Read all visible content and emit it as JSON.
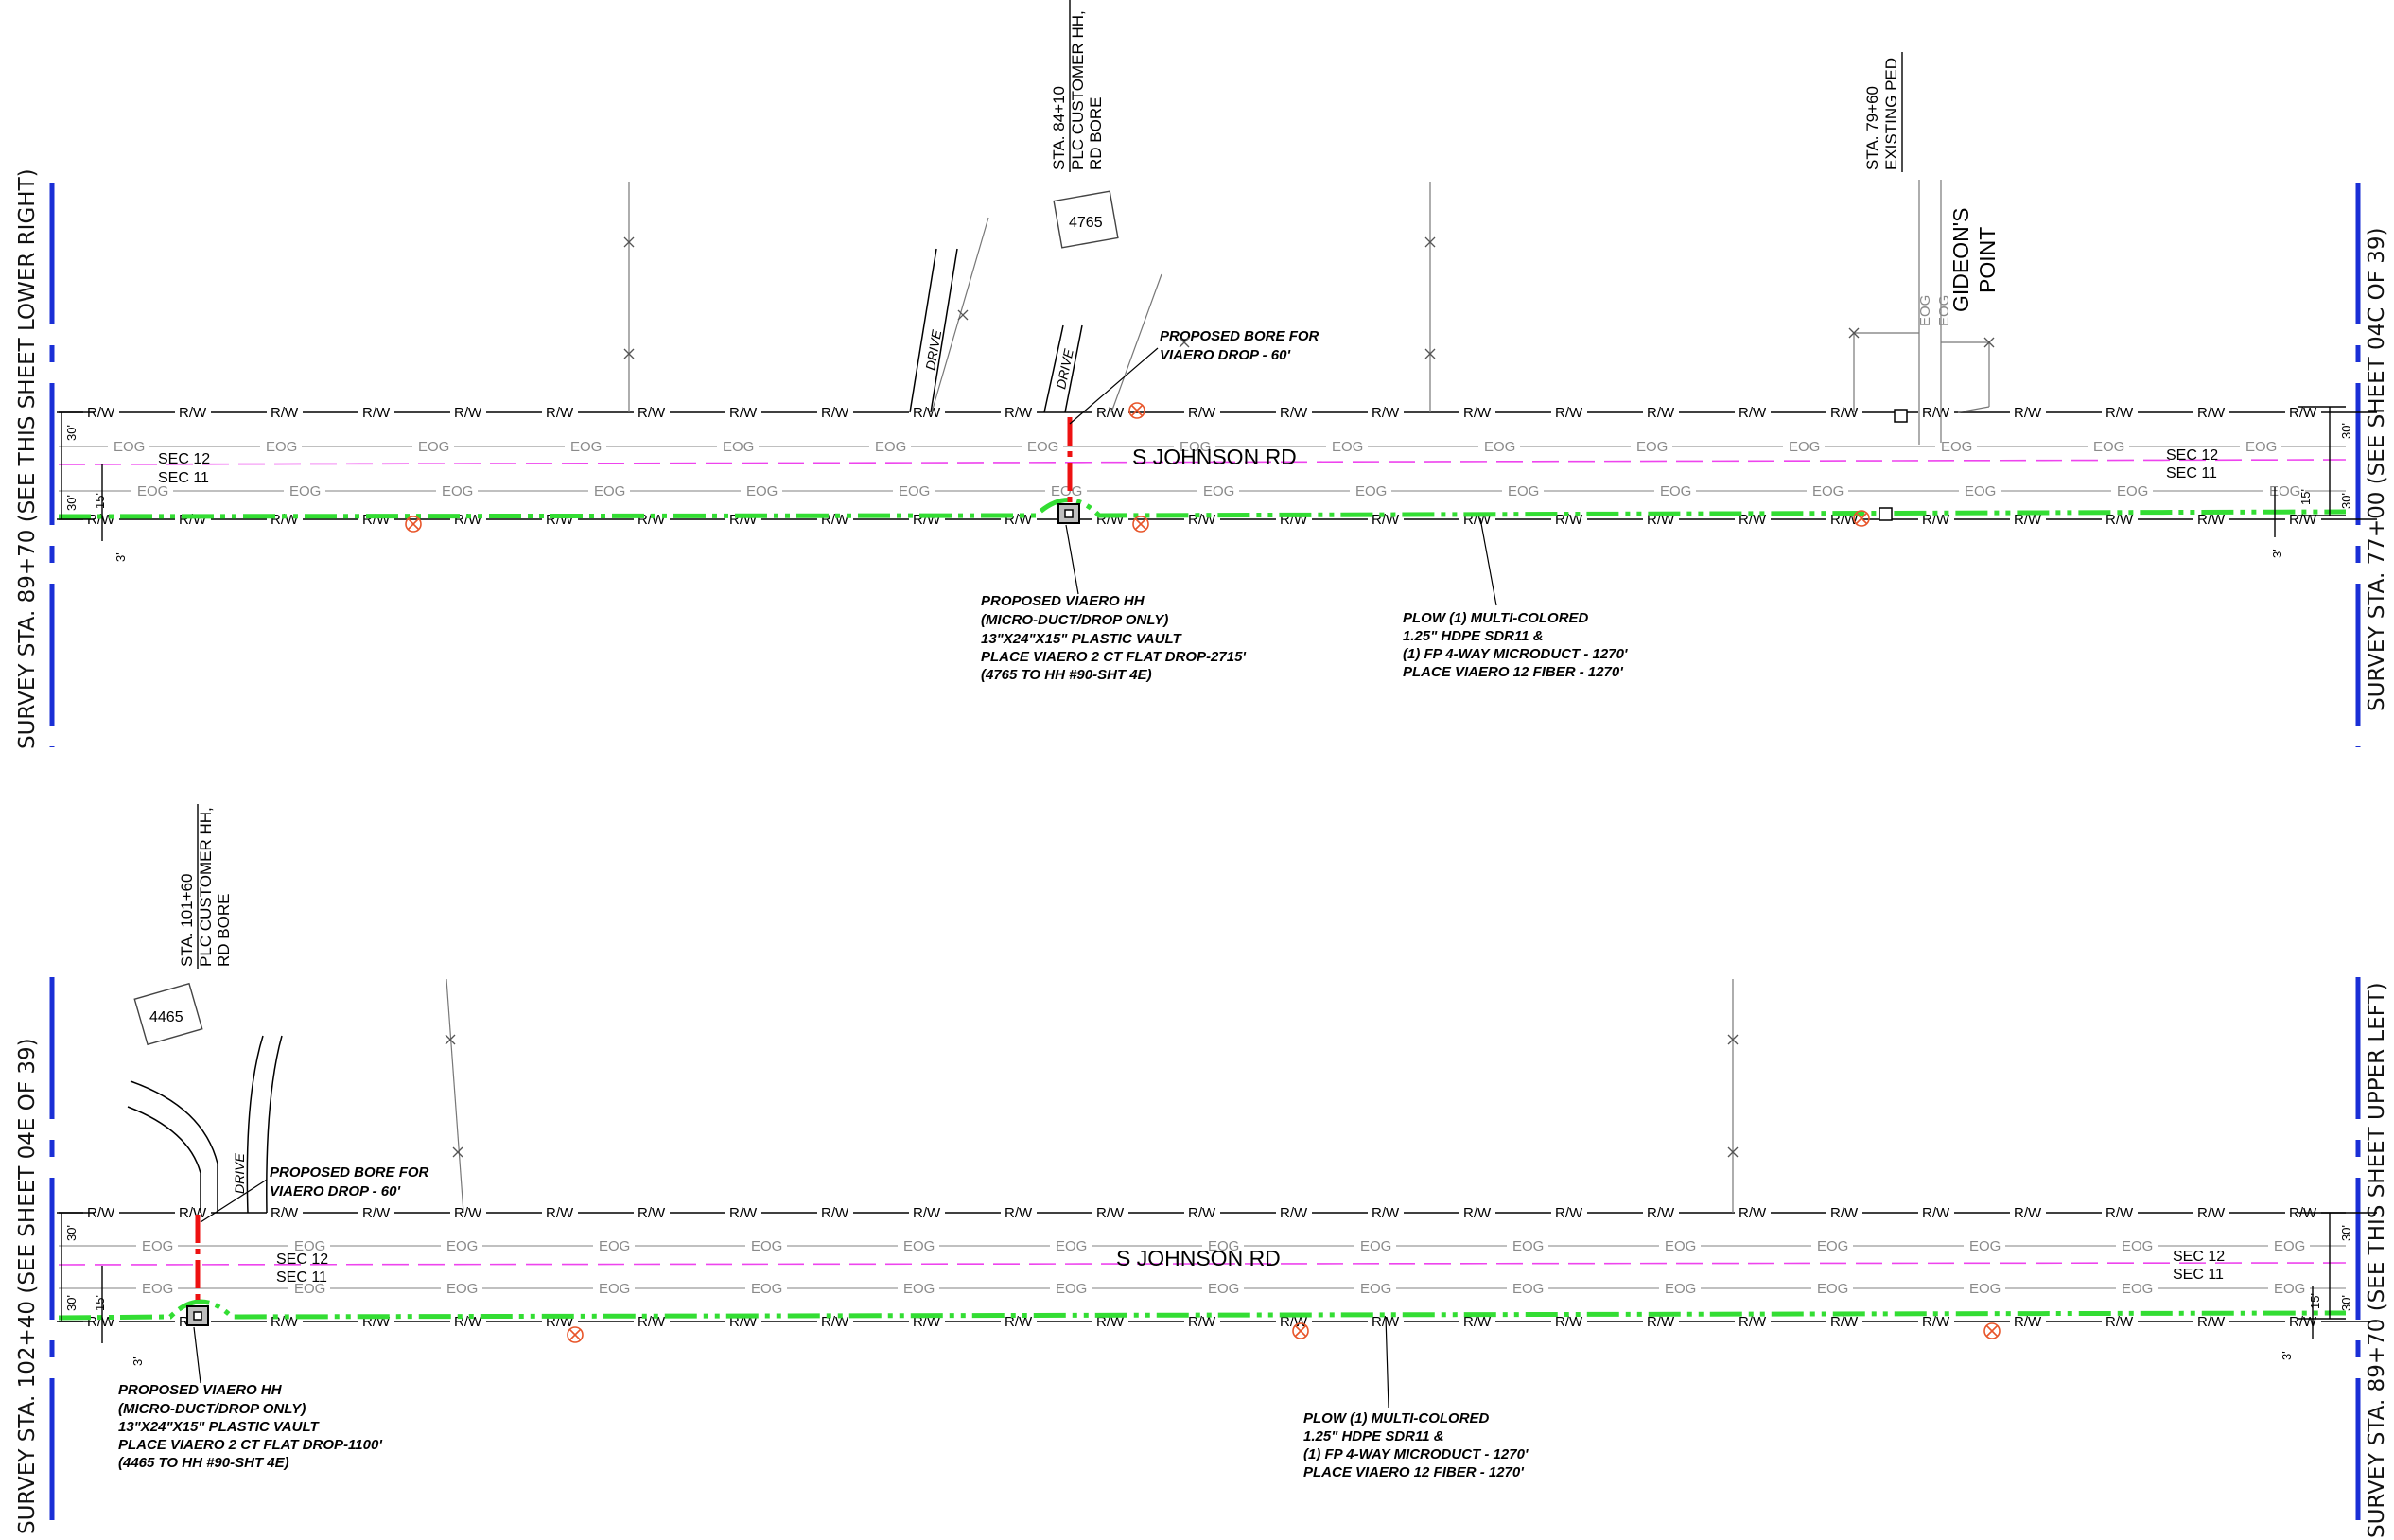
{
  "labels": {
    "rw": "R/W",
    "eog": "EOG",
    "sec12": "SEC 12",
    "sec11": "SEC 11",
    "road": "S JOHNSON RD",
    "dim30": "30'",
    "dim15": "15'",
    "dim3": "3'",
    "drive": "DRIVE"
  },
  "panel_top": {
    "left_match": "SURVEY STA. 89+70 (SEE THIS SHEET LOWER RIGHT)",
    "right_match": "SURVEY STA. 77+00 (SEE SHEET 04C OF 39)",
    "station_customer": [
      "STA. 84+10",
      "PLC CUSTOMER HH,",
      "RD BORE"
    ],
    "station_ped": [
      "STA. 79+60",
      "EXISTING PED"
    ],
    "address": "4765",
    "place_name": [
      "GIDEON'S",
      "POINT"
    ],
    "bore_note": [
      "PROPOSED BORE FOR",
      "VIAERO DROP - 60'"
    ],
    "hh_note": [
      "PROPOSED VIAERO HH",
      "(MICRO-DUCT/DROP ONLY)",
      "13\"X24\"X15\" PLASTIC VAULT",
      "PLACE VIAERO 2 CT FLAT DROP-2715'",
      "(4765 TO HH #90-SHT 4E)"
    ],
    "plow_note": [
      "PLOW (1) MULTI-COLORED",
      "1.25\" HDPE SDR11 &",
      "(1) FP 4-WAY MICRODUCT - 1270'",
      "PLACE VIAERO 12 FIBER - 1270'"
    ]
  },
  "panel_bottom": {
    "left_match": "SURVEY STA. 102+40 (SEE SHEET 04E OF 39)",
    "right_match": "SURVEY STA. 89+70 (SEE THIS SHEET UPPER LEFT)",
    "station_customer": [
      "STA. 101+60",
      "PLC CUSTOMER HH,",
      "RD BORE"
    ],
    "address": "4465",
    "bore_note": [
      "PROPOSED BORE FOR",
      "VIAERO DROP - 60'"
    ],
    "hh_note": [
      "PROPOSED VIAERO HH",
      "(MICRO-DUCT/DROP ONLY)",
      "13\"X24\"X15\" PLASTIC VAULT",
      "PLACE VIAERO 2 CT FLAT DROP-1100'",
      "(4465 TO HH #90-SHT 4E)"
    ],
    "plow_note": [
      "PLOW (1) MULTI-COLORED",
      "1.25\" HDPE SDR11 &",
      "(1) FP 4-WAY MICRODUCT - 1270'",
      "PLACE VIAERO 12 FIBER - 1270'"
    ]
  },
  "colors": {
    "fiber_route": "#33dd33",
    "bore": "#ee1111",
    "section_line": "#ee44ee",
    "match_line": "#1a2fd6",
    "utility_marker": "#e8552a",
    "eog_line": "#9a9a9a",
    "row_line": "#000000"
  },
  "icons": [
    "handhole-icon",
    "utility-crossing-icon",
    "pedestal-icon",
    "fence-marker-icon"
  ]
}
